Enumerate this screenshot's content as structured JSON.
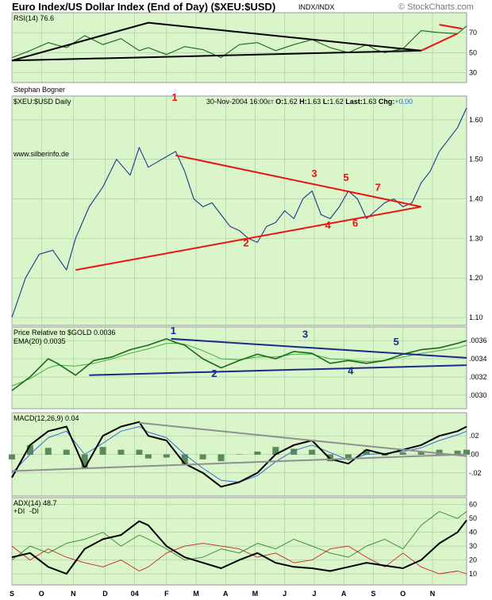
{
  "header": {
    "title": "Euro Index/US Dollar Index (End of Day) ($XEU:$USD)",
    "exchange": "INDX/INDX",
    "copyright": "© StockCharts.com"
  },
  "colors": {
    "panel_bg": "#d9f5c9",
    "grid": "#a8c8a0",
    "price_line": "#1a3a8a",
    "red_trend": "#ee1111",
    "black_trend": "#000000",
    "blue_trend": "#1a2a8a",
    "gray_trend": "#909090",
    "ratio_line": "#1a6a1a",
    "ema_line": "#3fae3f",
    "histogram": "#5a8a5a",
    "signal_line": "#3a6adf"
  },
  "chart_data": [
    {
      "id": "rsi",
      "type": "line",
      "label": "RSI(14) 76.6",
      "ylim": [
        20,
        90
      ],
      "ticks": [
        {
          "v": 70,
          "label": "70"
        },
        {
          "v": 50,
          "label": "50"
        },
        {
          "v": 30,
          "label": "30"
        }
      ],
      "x": [
        0,
        4,
        8,
        12,
        16,
        20,
        24,
        28,
        30,
        34,
        38,
        42,
        46,
        50,
        54,
        58,
        62,
        66,
        70,
        74,
        78,
        80,
        82,
        86,
        90,
        94,
        98,
        100
      ],
      "values": [
        45,
        52,
        60,
        55,
        67,
        58,
        64,
        52,
        55,
        48,
        56,
        53,
        45,
        58,
        60,
        52,
        58,
        63,
        55,
        50,
        58,
        53,
        50,
        54,
        72,
        70,
        69,
        76.6
      ],
      "trendlines": [
        {
          "color": "black",
          "points": [
            [
              0,
              42
            ],
            [
              30,
              80
            ],
            [
              90,
              52
            ]
          ]
        },
        {
          "color": "black",
          "points": [
            [
              0,
              42
            ],
            [
              90,
              52
            ]
          ]
        },
        {
          "color": "red",
          "points": [
            [
              90,
              52
            ],
            [
              98,
              69
            ]
          ]
        },
        {
          "color": "red",
          "points": [
            [
              94,
              78
            ],
            [
              99,
              74
            ]
          ]
        }
      ]
    },
    {
      "id": "price",
      "type": "line",
      "author": "Stephan Bogner",
      "label": "$XEU:$USD Daily",
      "website": "www.silberinfo.de",
      "marker": "1",
      "stats": {
        "date": "30-Nov-2004 16:00",
        "tz": "ET",
        "open_label": "O:",
        "open": "1.62",
        "high_label": "H:",
        "high": "1.63",
        "low_label": "L:",
        "low": "1.62",
        "last_label": "Last:",
        "last": "1.63",
        "chg_label": "Chg:",
        "chg": "+0.00"
      },
      "ylim": [
        1.08,
        1.66
      ],
      "ticks": [
        {
          "v": 1.6,
          "label": "1.60"
        },
        {
          "v": 1.5,
          "label": "1.50"
        },
        {
          "v": 1.4,
          "label": "1.40"
        },
        {
          "v": 1.3,
          "label": "1.30"
        },
        {
          "v": 1.2,
          "label": "1.20"
        },
        {
          "v": 1.1,
          "label": "1.10"
        }
      ],
      "x": [
        0,
        3,
        6,
        9,
        12,
        14,
        17,
        20,
        23,
        26,
        28,
        30,
        33,
        36,
        38,
        40,
        42,
        44,
        46,
        48,
        50,
        52,
        54,
        56,
        58,
        60,
        62,
        64,
        66,
        68,
        70,
        72,
        74,
        76,
        78,
        80,
        82,
        84,
        86,
        88,
        90,
        92,
        94,
        96,
        98,
        100
      ],
      "values": [
        1.1,
        1.2,
        1.26,
        1.27,
        1.22,
        1.3,
        1.38,
        1.43,
        1.5,
        1.46,
        1.53,
        1.48,
        1.5,
        1.52,
        1.47,
        1.4,
        1.38,
        1.39,
        1.36,
        1.33,
        1.32,
        1.3,
        1.29,
        1.33,
        1.34,
        1.37,
        1.35,
        1.4,
        1.42,
        1.36,
        1.35,
        1.38,
        1.42,
        1.4,
        1.35,
        1.37,
        1.39,
        1.4,
        1.38,
        1.39,
        1.44,
        1.47,
        1.52,
        1.55,
        1.58,
        1.63
      ],
      "trendlines": [
        {
          "color": "red",
          "points": [
            [
              14,
              1.22
            ],
            [
              90,
              1.38
            ]
          ]
        },
        {
          "color": "red",
          "points": [
            [
              36,
              1.51
            ],
            [
              90,
              1.38
            ]
          ]
        }
      ],
      "waves": [
        {
          "label": "2",
          "x": 51.5,
          "y": 1.28
        },
        {
          "label": "3",
          "x": 66.5,
          "y": 1.455
        },
        {
          "label": "4",
          "x": 69.5,
          "y": 1.325
        },
        {
          "label": "5",
          "x": 73.5,
          "y": 1.445
        },
        {
          "label": "6",
          "x": 75.5,
          "y": 1.33
        },
        {
          "label": "7",
          "x": 80.5,
          "y": 1.42
        }
      ]
    },
    {
      "id": "ratio",
      "type": "line",
      "label": "Price Relative to $GOLD 0.0036",
      "ema_label": "EMA(20) 0.0035",
      "ylim": [
        0.00285,
        0.00375
      ],
      "ticks": [
        {
          "v": 0.0036,
          "label": ".0036"
        },
        {
          "v": 0.0034,
          "label": ".0034"
        },
        {
          "v": 0.0032,
          "label": ".0032"
        },
        {
          "v": 0.003,
          "label": ".0030"
        }
      ],
      "x": [
        0,
        4,
        8,
        10,
        14,
        18,
        22,
        26,
        30,
        34,
        36,
        38,
        42,
        46,
        50,
        54,
        58,
        62,
        66,
        70,
        74,
        78,
        82,
        86,
        90,
        94,
        98,
        100
      ],
      "values": [
        0.00305,
        0.0032,
        0.0034,
        0.00335,
        0.00322,
        0.00338,
        0.00342,
        0.0035,
        0.00355,
        0.00362,
        0.00358,
        0.00355,
        0.0034,
        0.0033,
        0.00338,
        0.00345,
        0.0034,
        0.00348,
        0.00346,
        0.00335,
        0.00338,
        0.00335,
        0.00338,
        0.00345,
        0.0035,
        0.00352,
        0.00357,
        0.0036
      ],
      "ema": [
        0.0031,
        0.00318,
        0.0033,
        0.00333,
        0.00332,
        0.00335,
        0.0034,
        0.00346,
        0.00351,
        0.00357,
        0.00357,
        0.00356,
        0.00349,
        0.0034,
        0.00339,
        0.00342,
        0.00342,
        0.00345,
        0.00345,
        0.0034,
        0.00339,
        0.00337,
        0.00338,
        0.00342,
        0.00346,
        0.00349,
        0.00352,
        0.00355
      ],
      "trendlines": [
        {
          "color": "blue",
          "points": [
            [
              17,
              0.00322
            ],
            [
              100,
              0.00333
            ]
          ]
        },
        {
          "color": "blue",
          "points": [
            [
              35,
              0.00362
            ],
            [
              100,
              0.00341
            ]
          ]
        }
      ],
      "waves": [
        {
          "label": "1",
          "x": 35.5,
          "y": 0.00367
        },
        {
          "label": "2",
          "x": 44.5,
          "y": 0.0032
        },
        {
          "label": "3",
          "x": 64.5,
          "y": 0.00363
        },
        {
          "label": "4",
          "x": 74.5,
          "y": 0.00323
        },
        {
          "label": "5",
          "x": 84.5,
          "y": 0.00355
        }
      ]
    },
    {
      "id": "macd",
      "type": "line",
      "label": "MACD(12,26,9) 0.04",
      "ylim": [
        -0.045,
        0.045
      ],
      "ticks": [
        {
          "v": 0.02,
          "label": ".02"
        },
        {
          "v": 0.0,
          "label": ".00"
        },
        {
          "v": -0.02,
          "label": "-.02"
        }
      ],
      "x": [
        0,
        4,
        8,
        12,
        16,
        20,
        24,
        28,
        30,
        34,
        38,
        42,
        46,
        50,
        54,
        58,
        62,
        66,
        70,
        74,
        78,
        82,
        86,
        90,
        94,
        98,
        100
      ],
      "values": [
        -0.025,
        0.01,
        0.025,
        0.03,
        -0.015,
        0.02,
        0.03,
        0.035,
        0.02,
        0.015,
        -0.01,
        -0.02,
        -0.035,
        -0.03,
        -0.02,
        0.0,
        0.01,
        0.015,
        -0.005,
        -0.01,
        0.005,
        0.0,
        0.005,
        0.01,
        0.02,
        0.025,
        0.03
      ],
      "signal": [
        -0.02,
        0.0,
        0.018,
        0.025,
        0.0,
        0.012,
        0.025,
        0.03,
        0.024,
        0.018,
        0.0,
        -0.015,
        -0.028,
        -0.03,
        -0.023,
        -0.008,
        0.004,
        0.01,
        0.002,
        -0.006,
        0.0,
        0.001,
        0.003,
        0.007,
        0.015,
        0.021,
        0.025
      ],
      "trendlines": [
        {
          "color": "gray",
          "points": [
            [
              28,
              0.034
            ],
            [
              100,
              -0.002
            ]
          ]
        },
        {
          "color": "gray",
          "points": [
            [
              0,
              -0.018
            ],
            [
              100,
              0.0
            ]
          ]
        }
      ]
    },
    {
      "id": "adx",
      "type": "line",
      "label": "ADX(14) 48.7",
      "plus_label": "+DI",
      "minus_label": "-DI",
      "ylim": [
        2,
        65
      ],
      "ticks": [
        {
          "v": 60,
          "label": "60"
        },
        {
          "v": 50,
          "label": "50"
        },
        {
          "v": 40,
          "label": "40"
        },
        {
          "v": 30,
          "label": "30"
        },
        {
          "v": 20,
          "label": "20"
        },
        {
          "v": 10,
          "label": "10"
        }
      ],
      "x": [
        0,
        4,
        8,
        12,
        16,
        20,
        24,
        28,
        30,
        34,
        38,
        42,
        46,
        50,
        54,
        58,
        62,
        66,
        70,
        74,
        78,
        82,
        86,
        90,
        94,
        98,
        100
      ],
      "values": [
        22,
        25,
        15,
        10,
        28,
        35,
        38,
        48,
        45,
        30,
        22,
        18,
        14,
        20,
        25,
        18,
        15,
        14,
        12,
        15,
        18,
        16,
        14,
        20,
        32,
        40,
        48.7
      ],
      "plus_di": [
        20,
        30,
        25,
        32,
        35,
        40,
        30,
        38,
        35,
        28,
        20,
        22,
        28,
        25,
        32,
        28,
        35,
        30,
        25,
        22,
        30,
        35,
        28,
        45,
        55,
        50,
        55
      ],
      "minus_di": [
        30,
        20,
        28,
        22,
        18,
        15,
        20,
        12,
        15,
        25,
        30,
        32,
        30,
        28,
        22,
        25,
        18,
        20,
        28,
        30,
        22,
        15,
        25,
        15,
        10,
        12,
        10
      ]
    }
  ],
  "x_axis": {
    "labels": [
      {
        "label": "S",
        "pos": 0.0
      },
      {
        "label": "O",
        "pos": 6.5
      },
      {
        "label": "N",
        "pos": 13.5
      },
      {
        "label": "D",
        "pos": 20.5
      },
      {
        "label": "04",
        "pos": 27.0
      },
      {
        "label": "F",
        "pos": 34.0
      },
      {
        "label": "M",
        "pos": 40.5
      },
      {
        "label": "A",
        "pos": 47.0
      },
      {
        "label": "M",
        "pos": 53.5
      },
      {
        "label": "J",
        "pos": 60.0
      },
      {
        "label": "J",
        "pos": 66.5
      },
      {
        "label": "A",
        "pos": 73.0
      },
      {
        "label": "S",
        "pos": 79.5
      },
      {
        "label": "O",
        "pos": 86.0
      },
      {
        "label": "N",
        "pos": 92.5
      }
    ]
  }
}
